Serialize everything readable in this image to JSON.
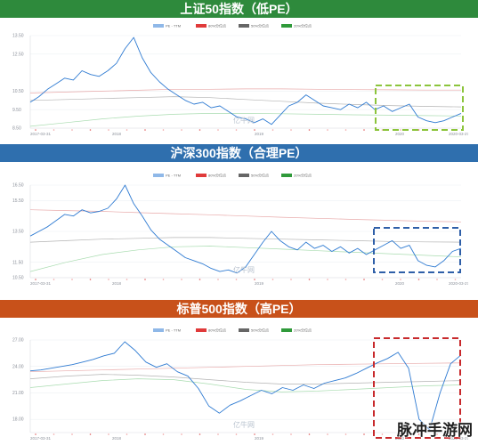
{
  "colors": {
    "pe_line": "#2f7bd2",
    "p80": "#e8a9a9",
    "p50": "#b3b3b3",
    "p20": "#a9dcb0",
    "legend_pe": "#8fb8e8",
    "legend_80": "#e03a3a",
    "legend_50": "#666666",
    "legend_20": "#2f9a3a"
  },
  "watermark": "亿牛网",
  "corner_logo": "脉冲手游网",
  "legend": [
    "PE - TTM",
    "80%分位点",
    "50%分位点",
    "20%分位点"
  ],
  "x_ticks": [
    "2017-03-31",
    "2018",
    "2019",
    "2020",
    "2020-03-27"
  ],
  "chart_data": [
    {
      "type": "line",
      "title": "上证50指数（低PE）",
      "banner_color": "#2e8a3c",
      "box_color": "#8cc43c",
      "y_ticks": [
        "13.50",
        "12.50",
        "10.50",
        "9.50",
        "8.50"
      ],
      "ylim": [
        8.5,
        13.5
      ],
      "series": [
        {
          "name": "PE - TTM",
          "values": [
            9.9,
            10.2,
            10.6,
            10.9,
            11.2,
            11.1,
            11.6,
            11.4,
            11.3,
            11.6,
            12.0,
            12.8,
            13.4,
            12.3,
            11.5,
            11.0,
            10.6,
            10.3,
            10.0,
            9.8,
            9.9,
            9.6,
            9.7,
            9.4,
            9.1,
            9.0,
            8.8,
            9.0,
            8.7,
            9.2,
            9.7,
            9.9,
            10.3,
            10.0,
            9.7,
            9.6,
            9.5,
            9.8,
            9.6,
            9.9,
            9.5,
            9.7,
            9.4,
            9.6,
            9.8,
            9.1,
            8.9,
            8.8,
            8.9,
            9.1,
            9.3
          ]
        },
        {
          "name": "80%分位点",
          "values": [
            10.4,
            10.45,
            10.5,
            10.55,
            10.6,
            10.6,
            10.62,
            10.62,
            10.6,
            10.58,
            10.57,
            10.56,
            10.56
          ]
        },
        {
          "name": "50%分位点",
          "values": [
            10.0,
            10.05,
            10.1,
            10.15,
            10.2,
            10.15,
            10.05,
            9.95,
            9.85,
            9.78,
            9.72,
            9.68,
            9.65
          ]
        },
        {
          "name": "20%分位点",
          "values": [
            8.6,
            8.8,
            9.0,
            9.15,
            9.25,
            9.3,
            9.3,
            9.28,
            9.25,
            9.22,
            9.2,
            9.18,
            9.16
          ]
        }
      ]
    },
    {
      "type": "line",
      "title": "沪深300指数（合理PE）",
      "banner_color": "#2f6fae",
      "box_color": "#2f5fa8",
      "y_ticks": [
        "16.50",
        "15.50",
        "13.50",
        "11.50",
        "10.50"
      ],
      "ylim": [
        10.5,
        16.5
      ],
      "series": [
        {
          "name": "PE - TTM",
          "values": [
            13.2,
            13.5,
            13.8,
            14.2,
            14.6,
            14.5,
            14.9,
            14.7,
            14.8,
            15.0,
            15.6,
            16.5,
            15.3,
            14.5,
            13.6,
            13.0,
            12.6,
            12.2,
            11.8,
            11.6,
            11.4,
            11.1,
            10.9,
            11.0,
            10.8,
            11.2,
            12.0,
            12.8,
            13.5,
            12.9,
            12.5,
            12.3,
            12.8,
            12.4,
            12.6,
            12.2,
            12.5,
            12.1,
            12.4,
            12.0,
            12.3,
            12.6,
            12.9,
            12.4,
            12.6,
            11.6,
            11.3,
            11.2,
            11.6,
            12.2,
            12.4
          ]
        },
        {
          "name": "80%分位点",
          "values": [
            14.9,
            14.85,
            14.8,
            14.72,
            14.65,
            14.58,
            14.5,
            14.42,
            14.35,
            14.28,
            14.22,
            14.16,
            14.12
          ]
        },
        {
          "name": "50%分位点",
          "values": [
            12.8,
            12.9,
            13.0,
            13.05,
            13.1,
            13.1,
            13.05,
            13.0,
            12.95,
            12.9,
            12.85,
            12.82,
            12.8
          ]
        },
        {
          "name": "20%分位点",
          "values": [
            10.9,
            11.5,
            12.0,
            12.3,
            12.5,
            12.55,
            12.45,
            12.35,
            12.25,
            12.15,
            12.05,
            11.95,
            11.85
          ]
        }
      ]
    },
    {
      "type": "line",
      "title": "标普500指数（高PE）",
      "banner_color": "#c8511a",
      "box_color": "#c8292c",
      "y_ticks": [
        "27.00",
        "24.00",
        "21.00",
        "18.00"
      ],
      "ylim": [
        16.5,
        27.0
      ],
      "series": [
        {
          "name": "PE - TTM",
          "values": [
            23.5,
            23.6,
            23.8,
            24.0,
            24.2,
            24.5,
            24.8,
            25.2,
            25.5,
            26.8,
            25.8,
            24.5,
            23.9,
            24.3,
            23.4,
            22.9,
            21.5,
            19.5,
            18.7,
            19.6,
            20.1,
            20.7,
            21.3,
            20.9,
            21.6,
            21.3,
            21.9,
            21.5,
            22.1,
            22.4,
            22.7,
            23.2,
            23.8,
            24.4,
            24.9,
            25.6,
            23.8,
            18.0,
            16.8,
            21.0,
            24.3,
            25.3
          ]
        },
        {
          "name": "80%分位点",
          "values": [
            23.4,
            23.5,
            23.6,
            23.7,
            23.8,
            23.9,
            24.0,
            24.1,
            24.2,
            24.25,
            24.3,
            24.35,
            24.4
          ]
        },
        {
          "name": "50%分位点",
          "values": [
            22.6,
            22.9,
            23.1,
            23.0,
            22.8,
            22.5,
            22.2,
            22.0,
            22.0,
            22.1,
            22.2,
            22.3,
            22.4
          ]
        },
        {
          "name": "20%分位点",
          "values": [
            21.6,
            22.0,
            22.4,
            22.6,
            22.5,
            22.0,
            21.4,
            21.1,
            21.2,
            21.4,
            21.6,
            21.8,
            21.9
          ]
        }
      ]
    }
  ]
}
